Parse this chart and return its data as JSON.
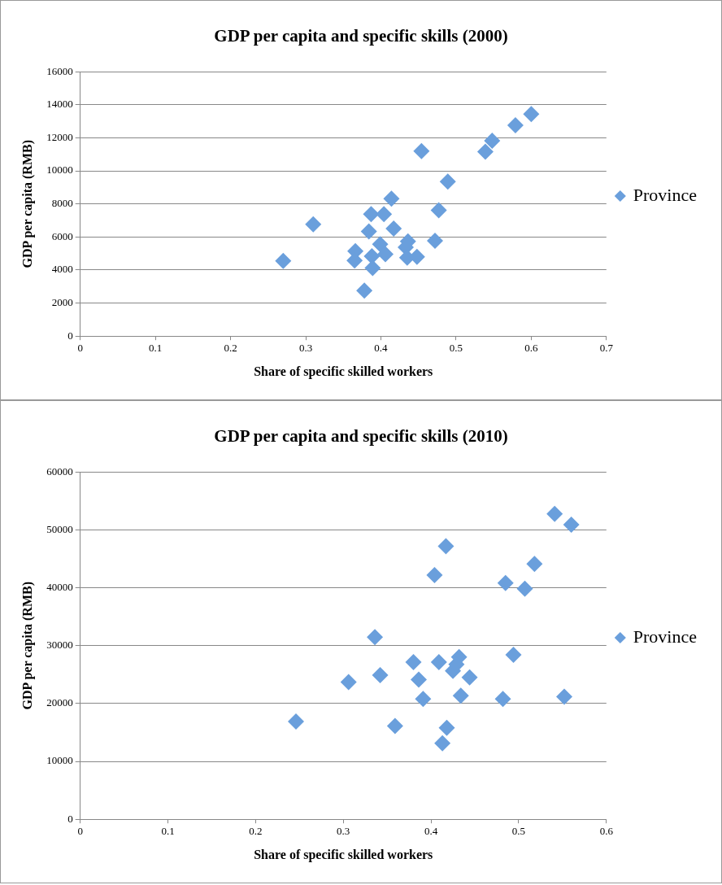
{
  "chart_data": [
    {
      "type": "scatter",
      "title": "GDP per capita and specific skills (2000)",
      "xlabel": "Share of specific skilled workers",
      "ylabel": "GDP per capita (RMB)",
      "legend": "right",
      "marker": "diamond",
      "grid": "y",
      "xlim": [
        0,
        0.7
      ],
      "xticks": [
        0,
        0.1,
        0.2,
        0.3,
        0.4,
        0.5,
        0.6,
        0.7
      ],
      "ylim": [
        0,
        16000
      ],
      "yticks": [
        0,
        2000,
        4000,
        6000,
        8000,
        10000,
        12000,
        14000,
        16000
      ],
      "series": [
        {
          "name": "Province",
          "color": "#6a9fdc",
          "x": [
            0.27,
            0.31,
            0.387,
            0.404,
            0.414,
            0.384,
            0.417,
            0.366,
            0.365,
            0.388,
            0.399,
            0.406,
            0.389,
            0.378,
            0.436,
            0.433,
            0.435,
            0.448,
            0.472,
            0.477,
            0.489,
            0.454,
            0.539,
            0.548,
            0.579,
            0.6
          ],
          "values": [
            4550,
            6770,
            7380,
            7380,
            8320,
            6330,
            6510,
            5140,
            4570,
            4840,
            5560,
            4960,
            4120,
            2760,
            5730,
            5380,
            4750,
            4800,
            5770,
            7620,
            9350,
            11200,
            11160,
            11830,
            12760,
            13440
          ]
        }
      ]
    },
    {
      "type": "scatter",
      "title": "GDP per capita and specific skills (2010)",
      "xlabel": "Share of specific skilled workers",
      "ylabel": "GDP per capita (RMB)",
      "legend": "right",
      "marker": "diamond",
      "grid": "y",
      "xlim": [
        0,
        0.6
      ],
      "xticks": [
        0,
        0.1,
        0.2,
        0.3,
        0.4,
        0.5,
        0.6
      ],
      "ylim": [
        0,
        60000
      ],
      "yticks": [
        0,
        10000,
        20000,
        30000,
        40000,
        50000,
        60000
      ],
      "series": [
        {
          "name": "Province",
          "color": "#6a9fdc",
          "x": [
            0.246,
            0.306,
            0.336,
            0.342,
            0.359,
            0.38,
            0.386,
            0.391,
            0.404,
            0.417,
            0.409,
            0.413,
            0.418,
            0.425,
            0.432,
            0.429,
            0.434,
            0.444,
            0.482,
            0.485,
            0.494,
            0.507,
            0.518,
            0.541,
            0.56,
            0.552
          ],
          "values": [
            16900,
            23690,
            31480,
            24910,
            16120,
            27140,
            24130,
            20800,
            42170,
            47170,
            27140,
            13120,
            15790,
            25640,
            28030,
            26750,
            21350,
            24520,
            20800,
            40830,
            28420,
            39830,
            44110,
            52740,
            50900,
            21190
          ]
        }
      ]
    }
  ]
}
